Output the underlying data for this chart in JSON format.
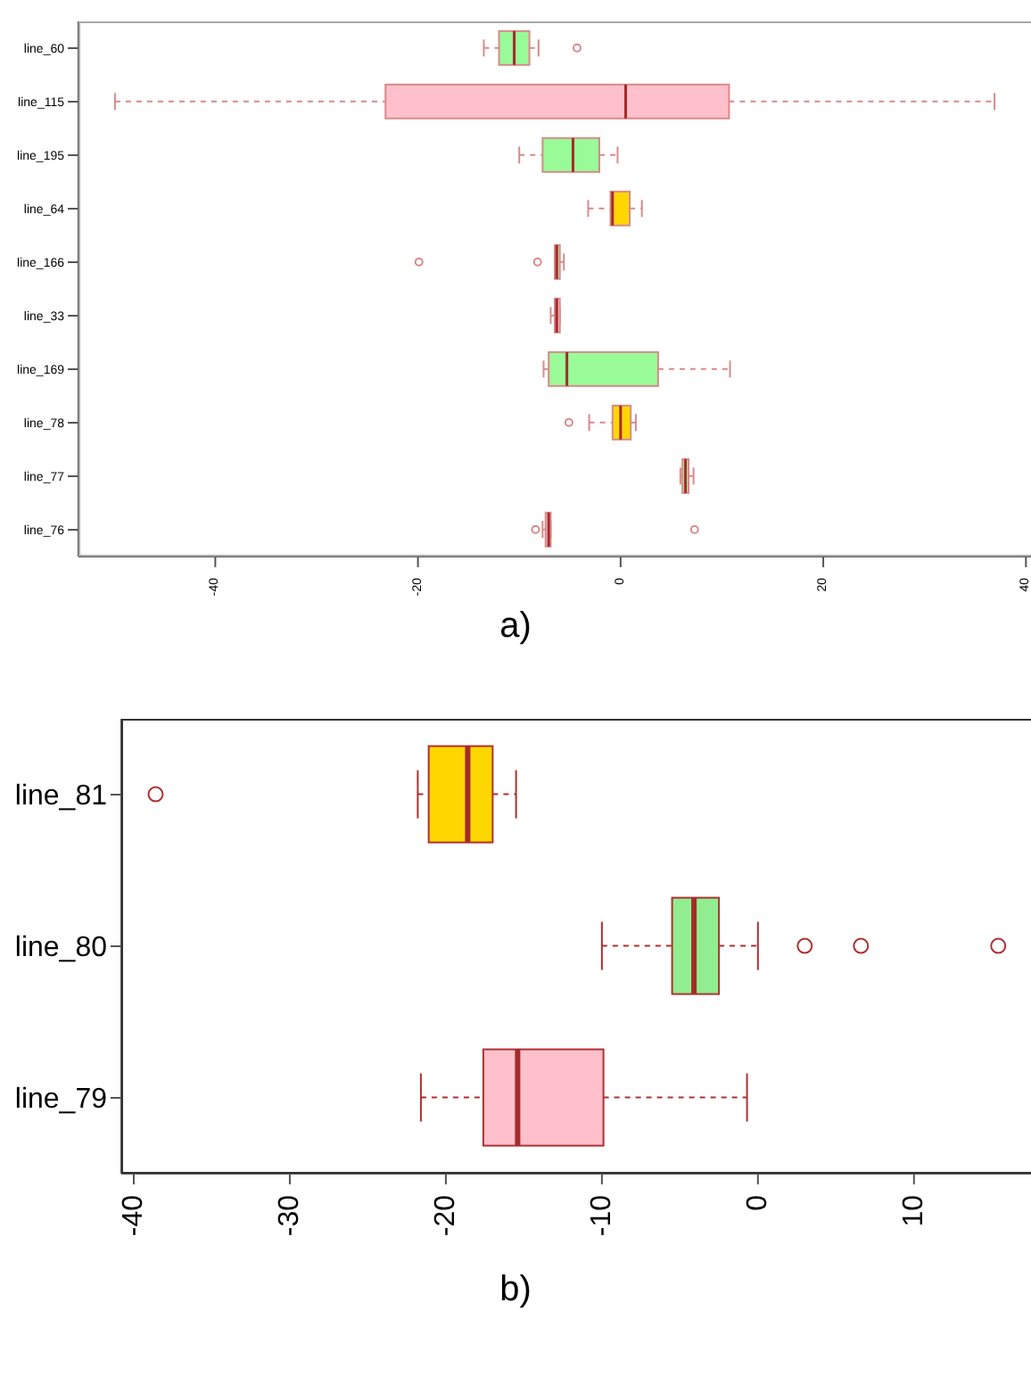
{
  "chart_data": [
    {
      "type": "box",
      "orientation": "horizontal",
      "categories": [
        "line_60",
        "line_115",
        "line_195",
        "line_64",
        "line_166",
        "line_33",
        "line_169",
        "line_78",
        "line_77",
        "line_76"
      ],
      "colors": [
        "#98fb98",
        "#ffc0cb",
        "#98fb98",
        "#ffd700",
        "#98fb98",
        "#ffc0cb",
        "#98fb98",
        "#ffd700",
        "#98fb98",
        "#ffc0cb"
      ],
      "boxes": [
        {
          "low": -13.5,
          "q1": -12.0,
          "median": -10.5,
          "q3": -9.0,
          "high": -8.1,
          "outliers": [
            -4.3
          ]
        },
        {
          "low": -49.9,
          "q1": -23.2,
          "median": 0.5,
          "q3": 10.7,
          "high": 36.9
        },
        {
          "low": -10.0,
          "q1": -7.7,
          "median": -4.7,
          "q3": -2.1,
          "high": -0.3
        },
        {
          "low": -3.2,
          "q1": -1.0,
          "median": -0.8,
          "q3": 0.9,
          "high": 2.1
        },
        {
          "low": -6.5,
          "q1": -6.5,
          "median": -6.3,
          "q3": -6.0,
          "high": -5.6,
          "outliers": [
            -19.9,
            -8.2
          ]
        },
        {
          "low": -6.9,
          "q1": -6.5,
          "median": -6.3,
          "q3": -6.0,
          "high": -6.0
        },
        {
          "low": -7.6,
          "q1": -7.1,
          "median": -5.3,
          "q3": 3.7,
          "high": 10.8
        },
        {
          "low": -3.1,
          "q1": -0.8,
          "median": 0.0,
          "q3": 1.0,
          "high": 1.5,
          "outliers": [
            -5.1
          ]
        },
        {
          "low": 5.9,
          "q1": 6.1,
          "median": 6.4,
          "q3": 6.7,
          "high": 7.2
        },
        {
          "low": -7.7,
          "q1": -7.4,
          "median": -7.1,
          "q3": -6.9,
          "high": -6.9,
          "outliers": [
            -8.4,
            7.3
          ]
        }
      ],
      "xlim": [
        -53.5,
        40.5
      ],
      "xticks": [
        -40,
        -20,
        0,
        20,
        40
      ],
      "annotations": [
        "a)"
      ]
    },
    {
      "type": "box",
      "orientation": "horizontal",
      "categories": [
        "line_81",
        "line_80",
        "line_79"
      ],
      "colors": [
        "#ffd700",
        "#90ee90",
        "#ffc0cb"
      ],
      "boxes": [
        {
          "low": -21.8,
          "q1": -21.1,
          "median": -18.6,
          "q3": -17.0,
          "high": -15.5,
          "outliers": [
            -38.6
          ]
        },
        {
          "low": -10.0,
          "q1": -5.5,
          "median": -4.1,
          "q3": -2.5,
          "high": 0.0,
          "outliers": [
            3.0,
            6.6,
            15.4
          ]
        },
        {
          "low": -21.6,
          "q1": -17.6,
          "median": -15.4,
          "q3": -9.9,
          "high": -0.7
        }
      ],
      "xlim": [
        -40.8,
        17.5
      ],
      "xticks": [
        -40,
        -30,
        -20,
        -10,
        0,
        10
      ],
      "annotations": [
        "b)"
      ]
    }
  ]
}
